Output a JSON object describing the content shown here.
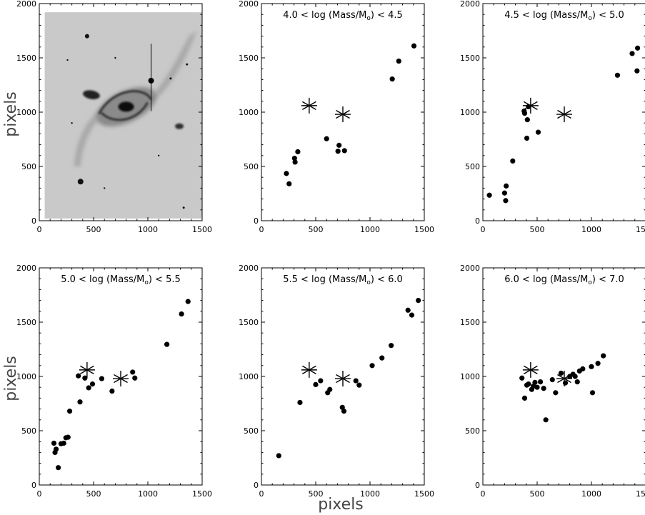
{
  "figure": {
    "ylabel_top": "pixels",
    "ylabel_bottom": "pixels",
    "xlabel": "pixels"
  },
  "chart_data": [
    {
      "type": "image",
      "title": "",
      "xlim": [
        0,
        1500
      ],
      "ylim": [
        0,
        2000
      ],
      "xticks": [
        "0",
        "500",
        "1000",
        "1500"
      ],
      "yticks": [
        "0",
        "500",
        "1000",
        "1500",
        "2000"
      ],
      "image_extent": {
        "x": [
          50,
          1500
        ],
        "y": [
          20,
          1920
        ]
      },
      "galaxy_core": [
        800,
        1050
      ],
      "marked_star": [
        1030,
        1290
      ],
      "x": [],
      "y": []
    },
    {
      "type": "scatter",
      "title": "4.0 < log (Mass/Mo) < 4.5",
      "xlim": [
        0,
        1500
      ],
      "ylim": [
        0,
        2000
      ],
      "xticks": [
        "0",
        "500",
        "1000",
        "1500"
      ],
      "yticks": [
        "0",
        "500",
        "1000",
        "1500",
        "2000"
      ],
      "markers": [
        [
          440,
          1060
        ],
        [
          750,
          980
        ]
      ],
      "x": [
        230,
        255,
        305,
        310,
        335,
        600,
        705,
        715,
        765,
        1205,
        1265,
        1405
      ],
      "y": [
        435,
        340,
        575,
        540,
        635,
        755,
        640,
        695,
        645,
        1305,
        1470,
        1610
      ]
    },
    {
      "type": "scatter",
      "title": "4.5 < log (Mass/Mo) < 5.0",
      "xlim": [
        0,
        1500
      ],
      "ylim": [
        0,
        2000
      ],
      "xticks": [
        "0",
        "500",
        "1000",
        "1500"
      ],
      "yticks": [
        "0",
        "500",
        "1000",
        "1500",
        "2000"
      ],
      "markers": [
        [
          440,
          1060
        ],
        [
          750,
          980
        ]
      ],
      "x": [
        60,
        200,
        210,
        215,
        275,
        380,
        385,
        405,
        410,
        420,
        510,
        1240,
        1375,
        1420,
        1425
      ],
      "y": [
        235,
        255,
        185,
        320,
        550,
        1010,
        990,
        760,
        930,
        1050,
        815,
        1340,
        1540,
        1380,
        1590
      ]
    },
    {
      "type": "scatter",
      "title": "5.0 < log (Mass/Mo) < 5.5",
      "xlim": [
        0,
        1500
      ],
      "ylim": [
        0,
        2000
      ],
      "xticks": [
        "0",
        "500",
        "1000",
        "1500"
      ],
      "yticks": [
        "0",
        "500",
        "1000",
        "1500",
        "2000"
      ],
      "markers": [
        [
          440,
          1060
        ],
        [
          750,
          980
        ]
      ],
      "x": [
        135,
        145,
        155,
        175,
        200,
        225,
        245,
        265,
        280,
        360,
        375,
        420,
        455,
        490,
        575,
        670,
        860,
        880,
        1175,
        1310,
        1370
      ],
      "y": [
        385,
        300,
        330,
        160,
        380,
        385,
        435,
        440,
        680,
        1005,
        765,
        985,
        895,
        930,
        980,
        865,
        1040,
        985,
        1295,
        1575,
        1690
      ]
    },
    {
      "type": "scatter",
      "title": "5.5 < log (Mass/Mo) < 6.0",
      "xlim": [
        0,
        1500
      ],
      "ylim": [
        0,
        2000
      ],
      "xticks": [
        "0",
        "500",
        "1000",
        "1500"
      ],
      "yticks": [
        "0",
        "500",
        "1000",
        "1500",
        "2000"
      ],
      "markers": [
        [
          440,
          1060
        ],
        [
          750,
          980
        ]
      ],
      "x": [
        160,
        355,
        500,
        545,
        610,
        630,
        745,
        760,
        870,
        900,
        1020,
        1110,
        1195,
        1350,
        1385,
        1445
      ],
      "y": [
        270,
        760,
        925,
        960,
        850,
        880,
        715,
        680,
        960,
        920,
        1100,
        1170,
        1285,
        1610,
        1565,
        1700
      ]
    },
    {
      "type": "scatter",
      "title": "6.0 < log (Mass/Mo) < 7.0",
      "xlim": [
        0,
        1500
      ],
      "ylim": [
        0,
        2000
      ],
      "xticks": [
        "0",
        "500",
        "1000",
        "1500"
      ],
      "yticks": [
        "0",
        "500",
        "1000",
        "1500",
        "2000"
      ],
      "markers": [
        [
          440,
          1060
        ],
        [
          750,
          980
        ]
      ],
      "x": [
        360,
        385,
        405,
        420,
        450,
        465,
        480,
        500,
        530,
        560,
        580,
        640,
        670,
        720,
        760,
        800,
        830,
        850,
        870,
        890,
        920,
        1000,
        1010,
        1060,
        1110
      ],
      "y": [
        985,
        800,
        920,
        930,
        880,
        910,
        945,
        900,
        950,
        890,
        600,
        970,
        850,
        1030,
        940,
        1000,
        1020,
        1000,
        950,
        1050,
        1070,
        1090,
        850,
        1120,
        1190
      ]
    }
  ]
}
